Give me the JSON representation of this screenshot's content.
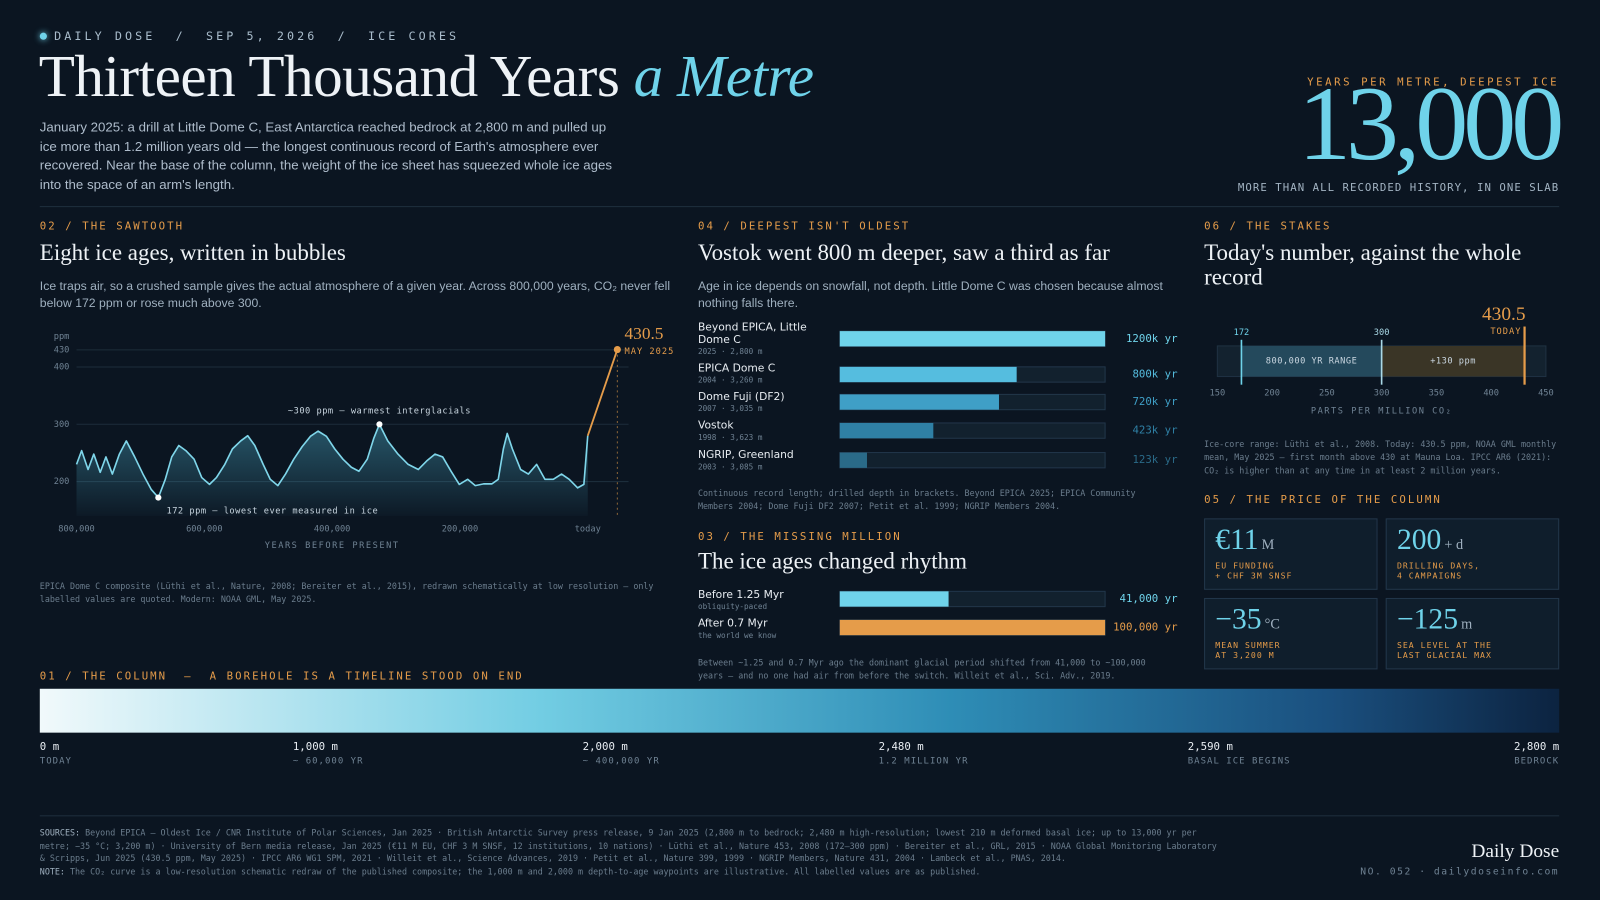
{
  "header": {
    "kicker": "DAILY DOSE  /  SEP 5, 2026  /  ICE CORES",
    "title": "Thirteen Thousand Years",
    "title_accent": "a Metre",
    "intro": "January 2025: a drill at Little Dome C, East Antarctica reached bedrock at 2,800 m and pulled up ice more than 1.2 million years old — the longest continuous record of Earth's atmosphere ever recovered. Near the base of the column, the weight of the ice sheet has squeezed whole ice ages into the space of an arm's length.",
    "stat_label": "YEARS PER METRE, DEEPEST ICE",
    "stat_value": "13,000",
    "stat_caption": "MORE THAN ALL RECORDED HISTORY, IN ONE SLAB"
  },
  "sections": {
    "sawtooth": {
      "label": "02 / THE SAWTOOTH",
      "heading": "Eight ice ages, written in bubbles",
      "body": "Ice traps air, so a crushed sample gives the actual atmosphere of a given year. Across 800,000 years, CO₂ never fell below 172 ppm or rose much above 300.",
      "note": "EPICA Dome C composite (Lüthi et al., Nature, 2008; Bereiter et al., 2015), redrawn schematically at low resolution — only labelled values are quoted. Modern: NOAA GML, May 2025."
    },
    "deepest": {
      "label": "04 / DEEPEST ISN'T OLDEST",
      "heading": "Vostok went 800 m deeper, saw a third as far",
      "body": "Age in ice depends on snowfall, not depth. Little Dome C was chosen because almost nothing falls there.",
      "note": "Continuous record length; drilled depth in brackets. Beyond EPICA 2025; EPICA Community Members 2004; Dome Fuji DF2 2007; Petit et al. 1999; NGRIP Members 2004."
    },
    "rhythm": {
      "label": "03 / THE MISSING MILLION",
      "heading": "The ice ages changed rhythm",
      "note": "Between ~1.25 and 0.7 Myr ago the dominant glacial period shifted from 41,000 to ~100,000 years — and no one had air from before the switch. Willeit et al., Sci. Adv., 2019."
    },
    "stakes": {
      "label": "06 / THE STAKES",
      "heading": "Today's number, against the whole record",
      "note": "Ice-core range: Lüthi et al., 2008. Today: 430.5 ppm, NOAA GML monthly mean, May 2025 — first month above 430 at Mauna Loa. IPCC AR6 (2021): CO₂ is higher than at any time in at least 2 million years."
    },
    "price": {
      "label": "05 / THE PRICE OF THE COLUMN",
      "cards": [
        {
          "value": "€11",
          "unit": "M",
          "caption": [
            "EU FUNDING",
            "+ CHF 3M SNSF"
          ]
        },
        {
          "value": "200",
          "unit": "+ d",
          "caption": [
            "DRILLING DAYS,",
            "4 CAMPAIGNS"
          ]
        },
        {
          "value": "−35",
          "unit": "°C",
          "caption": [
            "MEAN SUMMER",
            "AT 3,200 M"
          ]
        },
        {
          "value": "−125",
          "unit": "m",
          "caption": [
            "SEA LEVEL AT THE",
            "LAST GLACIAL MAX"
          ]
        }
      ]
    },
    "column": {
      "label": "01 / THE COLUMN  —  A BOREHOLE IS A TIMELINE STOOD ON END",
      "waypoints": [
        {
          "depth": "0 m",
          "age": "TODAY"
        },
        {
          "depth": "1,000 m",
          "age": "~ 60,000 YR"
        },
        {
          "depth": "2,000 m",
          "age": "~ 400,000 YR"
        },
        {
          "depth": "2,480 m",
          "age": "1.2 MILLION YR"
        },
        {
          "depth": "2,590 m",
          "age": "BASAL ICE BEGINS"
        },
        {
          "depth": "2,800 m",
          "age": "BEDROCK"
        }
      ]
    }
  },
  "footer": {
    "sources_label": "SOURCES:",
    "sources": "Beyond EPICA — Oldest Ice / CNR Institute of Polar Sciences, Jan 2025 · British Antarctic Survey press release, 9 Jan 2025 (2,800 m to bedrock; 2,480 m high-resolution; lowest 210 m deformed basal ice; up to 13,000 yr per metre; −35 °C; 3,200 m) · University of Bern media release, Jan 2025 (€11 M EU, CHF 3 M SNSF, 12 institutions, 10 nations) · Lüthi et al., Nature 453, 2008 (172–300 ppm) · Bereiter et al., GRL, 2015 · NOAA Global Monitoring Laboratory & Scripps, Jun 2025 (430.5 ppm, May 2025) · IPCC AR6 WG1 SPM, 2021 · Willeit et al., Science Advances, 2019 · Petit et al., Nature 399, 1999 · NGRIP Members, Nature 431, 2004 · Lambeck et al., PNAS, 2014.",
    "note_label": "NOTE:",
    "note": "The CO₂ curve is a low-resolution schematic redraw of the published composite; the 1,000 m and 2,000 m depth-to-age waypoints are illustrative. All labelled values are as published.",
    "brand": "Daily Dose",
    "issue": "NO. 052 · dailydoseinfo.com"
  },
  "chart_data": [
    {
      "type": "line",
      "ylabel": "ppm",
      "xlabel": "YEARS BEFORE PRESENT",
      "color": "#7fd6ea",
      "x": [
        800000,
        792000,
        782000,
        773000,
        763000,
        754000,
        744000,
        733000,
        722000,
        709000,
        696000,
        683000,
        672000,
        661000,
        651000,
        640000,
        629000,
        616000,
        604000,
        592000,
        581000,
        568000,
        556000,
        543000,
        532000,
        521000,
        508000,
        497000,
        485000,
        473000,
        460000,
        447000,
        434000,
        422000,
        409000,
        396000,
        383000,
        370000,
        358000,
        345000,
        335000,
        326000,
        313000,
        297000,
        281000,
        265000,
        252000,
        239000,
        227000,
        214000,
        201000,
        188000,
        176000,
        163000,
        150000,
        140000,
        132000,
        126000,
        118000,
        105000,
        93000,
        80000,
        67000,
        54000,
        41000,
        29000,
        16000,
        6000,
        0
      ],
      "values": [
        230,
        254,
        221,
        248,
        216,
        243,
        213,
        248,
        271,
        243,
        213,
        186,
        172,
        204,
        243,
        263,
        254,
        239,
        207,
        195,
        207,
        230,
        257,
        271,
        280,
        263,
        230,
        204,
        193,
        213,
        239,
        261,
        279,
        288,
        279,
        257,
        239,
        225,
        218,
        239,
        275,
        300,
        271,
        248,
        230,
        221,
        236,
        248,
        243,
        218,
        195,
        204,
        193,
        196,
        196,
        204,
        257,
        284,
        257,
        221,
        213,
        230,
        204,
        204,
        213,
        204,
        189,
        195,
        280
      ],
      "xlim": [
        800000,
        0
      ],
      "ylim": [
        140,
        460
      ],
      "xticks": [
        {
          "value": 800000,
          "label": "800,000"
        },
        {
          "value": 600000,
          "label": "600,000"
        },
        {
          "value": 400000,
          "label": "400,000"
        },
        {
          "value": 200000,
          "label": "200,000"
        },
        {
          "value": 0,
          "label": "today"
        }
      ],
      "yticks": [
        200,
        300,
        400,
        430
      ],
      "grid": true,
      "annotations": [
        {
          "text": "~300 ppm — warmest interglacials",
          "x": 326000,
          "y": 300
        },
        {
          "text": "172 ppm — lowest ever measured in ice",
          "x": 672000,
          "y": 172
        }
      ],
      "modern": {
        "value": 430.5,
        "date": "MAY 2025",
        "color": "#e59c4a"
      }
    },
    {
      "type": "hbar",
      "categories": [
        "Beyond EPICA, Little Dome C",
        "EPICA Dome C",
        "Dome Fuji (DF2)",
        "Vostok",
        "NGRIP, Greenland"
      ],
      "sublabels": [
        "2025 · 2,800 m",
        "2004 · 3,260 m",
        "2007 · 3,035 m",
        "1998 · 3,623 m",
        "2003 · 3,085 m"
      ],
      "values": [
        1200000,
        800000,
        720000,
        423000,
        123000
      ],
      "value_labels": [
        "1200k yr",
        "800k yr",
        "720k yr",
        "423k yr",
        "123k yr"
      ],
      "colors": [
        "#6fd3ea",
        "#55bddf",
        "#3f9fc6",
        "#2f80a5",
        "#2a6a88"
      ],
      "xlim": [
        0,
        1200000
      ]
    },
    {
      "type": "hbar",
      "categories": [
        "Before 1.25 Myr",
        "After 0.7 Myr"
      ],
      "sublabels": [
        "obliquity-paced",
        "the world we know"
      ],
      "values": [
        41000,
        100000
      ],
      "value_labels": [
        "41,000 yr",
        "100,000 yr"
      ],
      "colors": [
        "#6fd3ea",
        "#e59c4a"
      ],
      "xlim": [
        0,
        100000
      ]
    },
    {
      "type": "range",
      "xlabel": "PARTS PER MILLION CO₂",
      "values": [
        172,
        300,
        430.5
      ],
      "marker_label": "TODAY",
      "band_labels": [
        "800,000 YR RANGE",
        "+130 ppm"
      ],
      "colors": [
        "#6fd3ea",
        "#a9d8e6",
        "#e59c4a"
      ],
      "band_colors": [
        "#24495c",
        "#3a3526"
      ],
      "xlim": [
        150,
        450
      ],
      "xticks": [
        150,
        200,
        250,
        300,
        350,
        400,
        450
      ]
    }
  ]
}
